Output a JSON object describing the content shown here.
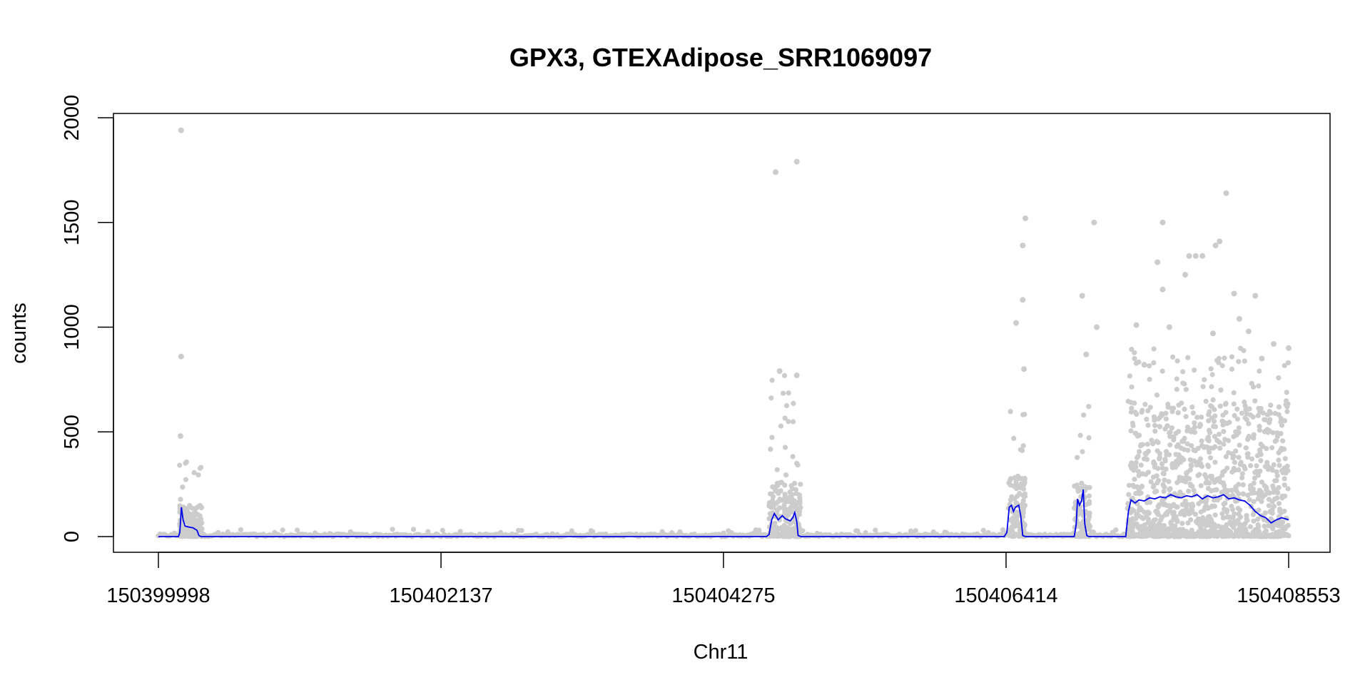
{
  "chart_data": {
    "type": "scatter",
    "title": "GPX3, GTEXAdipose_SRR1069097",
    "xlabel": "Chr11",
    "ylabel": "counts",
    "xlim": [
      150399998,
      150408553
    ],
    "ylim": [
      0,
      2000
    ],
    "x_ticks": [
      "150399998",
      "150402137",
      "150404275",
      "150406414",
      "150408553"
    ],
    "y_ticks": [
      "0",
      "500",
      "1000",
      "1500",
      "2000"
    ],
    "grid": false,
    "legend": "none",
    "points_color": "#cccccc",
    "line_color": "#0000ee",
    "series": [
      {
        "style": "points",
        "color": "#cccccc",
        "segments": [
          {
            "x_start": 150400158,
            "x_end": 150400330,
            "baseline_max": 150,
            "peak_max": 420
          },
          {
            "x_start": 150404620,
            "x_end": 150404860,
            "baseline_max": 260,
            "peak_max": 790
          },
          {
            "x_start": 150406433,
            "x_end": 150406560,
            "baseline_max": 300,
            "peak_max": 700
          },
          {
            "x_start": 150406930,
            "x_end": 150407050,
            "baseline_max": 250,
            "peak_max": 830
          },
          {
            "x_start": 150407330,
            "x_end": 150408553,
            "baseline_max": 650,
            "peak_max": 900
          }
        ],
        "outliers": [
          {
            "x": 150400170,
            "y": 1940
          },
          {
            "x": 150400170,
            "y": 860
          },
          {
            "x": 150400165,
            "y": 480
          },
          {
            "x": 150404670,
            "y": 1740
          },
          {
            "x": 150404830,
            "y": 1790
          },
          {
            "x": 150404700,
            "y": 790
          },
          {
            "x": 150404830,
            "y": 770
          },
          {
            "x": 150406490,
            "y": 1020
          },
          {
            "x": 150406560,
            "y": 1520
          },
          {
            "x": 150406540,
            "y": 1390
          },
          {
            "x": 150406540,
            "y": 1130
          },
          {
            "x": 150406550,
            "y": 800
          },
          {
            "x": 150406990,
            "y": 1150
          },
          {
            "x": 150407080,
            "y": 1500
          },
          {
            "x": 150407100,
            "y": 1000
          },
          {
            "x": 150407020,
            "y": 870
          },
          {
            "x": 150407600,
            "y": 1500
          },
          {
            "x": 150407560,
            "y": 1310
          },
          {
            "x": 150407600,
            "y": 1180
          },
          {
            "x": 150407770,
            "y": 1250
          },
          {
            "x": 150407800,
            "y": 1340
          },
          {
            "x": 150407850,
            "y": 1340
          },
          {
            "x": 150407900,
            "y": 1340
          },
          {
            "x": 150408000,
            "y": 1390
          },
          {
            "x": 150408030,
            "y": 1410
          },
          {
            "x": 150408080,
            "y": 1640
          },
          {
            "x": 150408140,
            "y": 1160
          },
          {
            "x": 150408300,
            "y": 1150
          },
          {
            "x": 150408180,
            "y": 1040
          },
          {
            "x": 150408250,
            "y": 980
          },
          {
            "x": 150407400,
            "y": 1010
          },
          {
            "x": 150407650,
            "y": 1000
          },
          {
            "x": 150407980,
            "y": 970
          },
          {
            "x": 150408440,
            "y": 920
          },
          {
            "x": 150408553,
            "y": 900
          },
          {
            "x": 150407460,
            "y": 820
          },
          {
            "x": 150408350,
            "y": 850
          }
        ]
      },
      {
        "style": "line",
        "color": "#0000ee",
        "points": [
          [
            150399998,
            0
          ],
          [
            150400150,
            0
          ],
          [
            150400160,
            20
          ],
          [
            150400172,
            140
          ],
          [
            150400185,
            80
          ],
          [
            150400200,
            50
          ],
          [
            150400230,
            45
          ],
          [
            150400260,
            42
          ],
          [
            150400290,
            30
          ],
          [
            150400305,
            5
          ],
          [
            150400320,
            0
          ],
          [
            150401500,
            0
          ],
          [
            150402500,
            0
          ],
          [
            150403500,
            0
          ],
          [
            150404400,
            0
          ],
          [
            150404600,
            0
          ],
          [
            150404620,
            10
          ],
          [
            150404640,
            80
          ],
          [
            150404660,
            110
          ],
          [
            150404690,
            80
          ],
          [
            150404720,
            100
          ],
          [
            150404745,
            85
          ],
          [
            150404780,
            75
          ],
          [
            150404800,
            90
          ],
          [
            150404815,
            115
          ],
          [
            150404830,
            70
          ],
          [
            150404840,
            5
          ],
          [
            150404860,
            0
          ],
          [
            150406400,
            0
          ],
          [
            150406420,
            20
          ],
          [
            150406438,
            140
          ],
          [
            150406455,
            150
          ],
          [
            150406470,
            120
          ],
          [
            150406485,
            140
          ],
          [
            150406510,
            150
          ],
          [
            150406525,
            100
          ],
          [
            150406540,
            5
          ],
          [
            150406560,
            0
          ],
          [
            150406930,
            0
          ],
          [
            150406945,
            60
          ],
          [
            150406955,
            180
          ],
          [
            150406970,
            150
          ],
          [
            150406985,
            170
          ],
          [
            150406998,
            225
          ],
          [
            150407010,
            60
          ],
          [
            150407025,
            5
          ],
          [
            150407040,
            0
          ],
          [
            150407320,
            0
          ],
          [
            150407340,
            120
          ],
          [
            150407360,
            175
          ],
          [
            150407390,
            160
          ],
          [
            150407420,
            175
          ],
          [
            150407460,
            170
          ],
          [
            150407500,
            185
          ],
          [
            150407540,
            180
          ],
          [
            150407580,
            190
          ],
          [
            150407620,
            185
          ],
          [
            150407660,
            200
          ],
          [
            150407700,
            190
          ],
          [
            150407740,
            185
          ],
          [
            150407780,
            195
          ],
          [
            150407820,
            190
          ],
          [
            150407860,
            200
          ],
          [
            150407900,
            180
          ],
          [
            150407940,
            195
          ],
          [
            150407980,
            185
          ],
          [
            150408020,
            190
          ],
          [
            150408060,
            200
          ],
          [
            150408100,
            180
          ],
          [
            150408140,
            185
          ],
          [
            150408180,
            175
          ],
          [
            150408220,
            170
          ],
          [
            150408260,
            150
          ],
          [
            150408300,
            120
          ],
          [
            150408340,
            100
          ],
          [
            150408380,
            90
          ],
          [
            150408420,
            65
          ],
          [
            150408460,
            80
          ],
          [
            150408500,
            90
          ],
          [
            150408530,
            85
          ],
          [
            150408553,
            80
          ]
        ]
      }
    ]
  }
}
